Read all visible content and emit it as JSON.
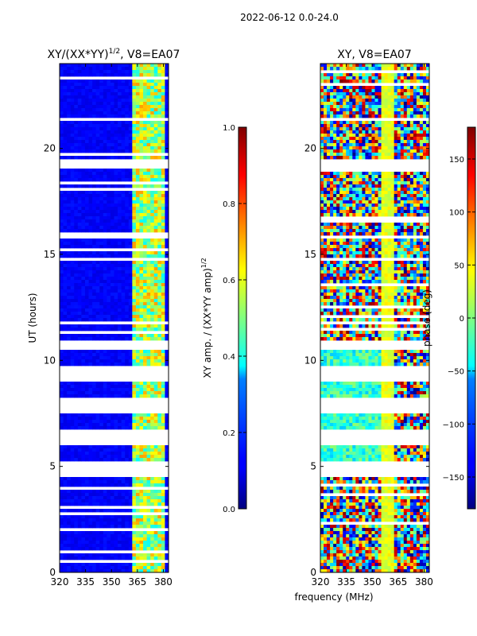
{
  "suptitle": "2022-06-12 0.0-24.0",
  "xlabel_shared": "frequency (MHz)",
  "chart_data": [
    {
      "type": "heatmap",
      "title": "XY/(XX*YY)$^{1/2}$, V8=EA07",
      "title_main": "XY/(XX*YY)",
      "title_sup": "1/2",
      "title_tail": ", V8=EA07",
      "xlabel": "",
      "ylabel": "UT (hours)",
      "xlim": [
        320,
        383
      ],
      "ylim": [
        0,
        24
      ],
      "xticks": [
        "320",
        "335",
        "350",
        "365",
        "380"
      ],
      "xtick_values": [
        320,
        335,
        350,
        365,
        380
      ],
      "yticks": [
        "0",
        "5",
        "10",
        "15",
        "20"
      ],
      "ytick_values": [
        0,
        5,
        10,
        15,
        20
      ],
      "colormap": "jet",
      "colorbar": {
        "label": "XY amp. / (XX*YY amp)$^{1/2}$",
        "label_main": "XY amp. / (XX*YY amp)",
        "label_sup": "1/2",
        "range": [
          0.0,
          1.0
        ],
        "ticks": [
          "0.0",
          "0.2",
          "0.4",
          "0.6",
          "0.8",
          "1.0"
        ],
        "tick_values": [
          0.0,
          0.2,
          0.4,
          0.6,
          0.8,
          1.0
        ]
      },
      "description_values": {
        "background_level": 0.12,
        "band_level_363_382MHz": 0.55
      }
    },
    {
      "type": "heatmap",
      "title": "XY, V8=EA07",
      "xlabel": "frequency (MHz)",
      "ylabel": "",
      "xlim": [
        320,
        383
      ],
      "ylim": [
        0,
        24
      ],
      "xticks": [
        "320",
        "335",
        "350",
        "365",
        "380"
      ],
      "xtick_values": [
        320,
        335,
        350,
        365,
        380
      ],
      "yticks": [
        "0",
        "5",
        "10",
        "15",
        "20"
      ],
      "ytick_values": [
        0,
        5,
        10,
        15,
        20
      ],
      "colormap": "jet",
      "colorbar": {
        "label": "phase (deg)",
        "range": [
          -180,
          180
        ],
        "ticks": [
          "−150",
          "−100",
          "−50",
          "0",
          "50",
          "100",
          "150"
        ],
        "tick_values": [
          -150,
          -100,
          -50,
          0,
          50,
          100,
          150
        ]
      }
    }
  ],
  "colors": {
    "jet_dark_blue": "#00007f",
    "jet_blue": "#0000ff",
    "jet_cyan": "#00ffff",
    "jet_yellow": "#ffff00",
    "jet_red": "#ff0000",
    "jet_dark_red": "#7f0000"
  }
}
